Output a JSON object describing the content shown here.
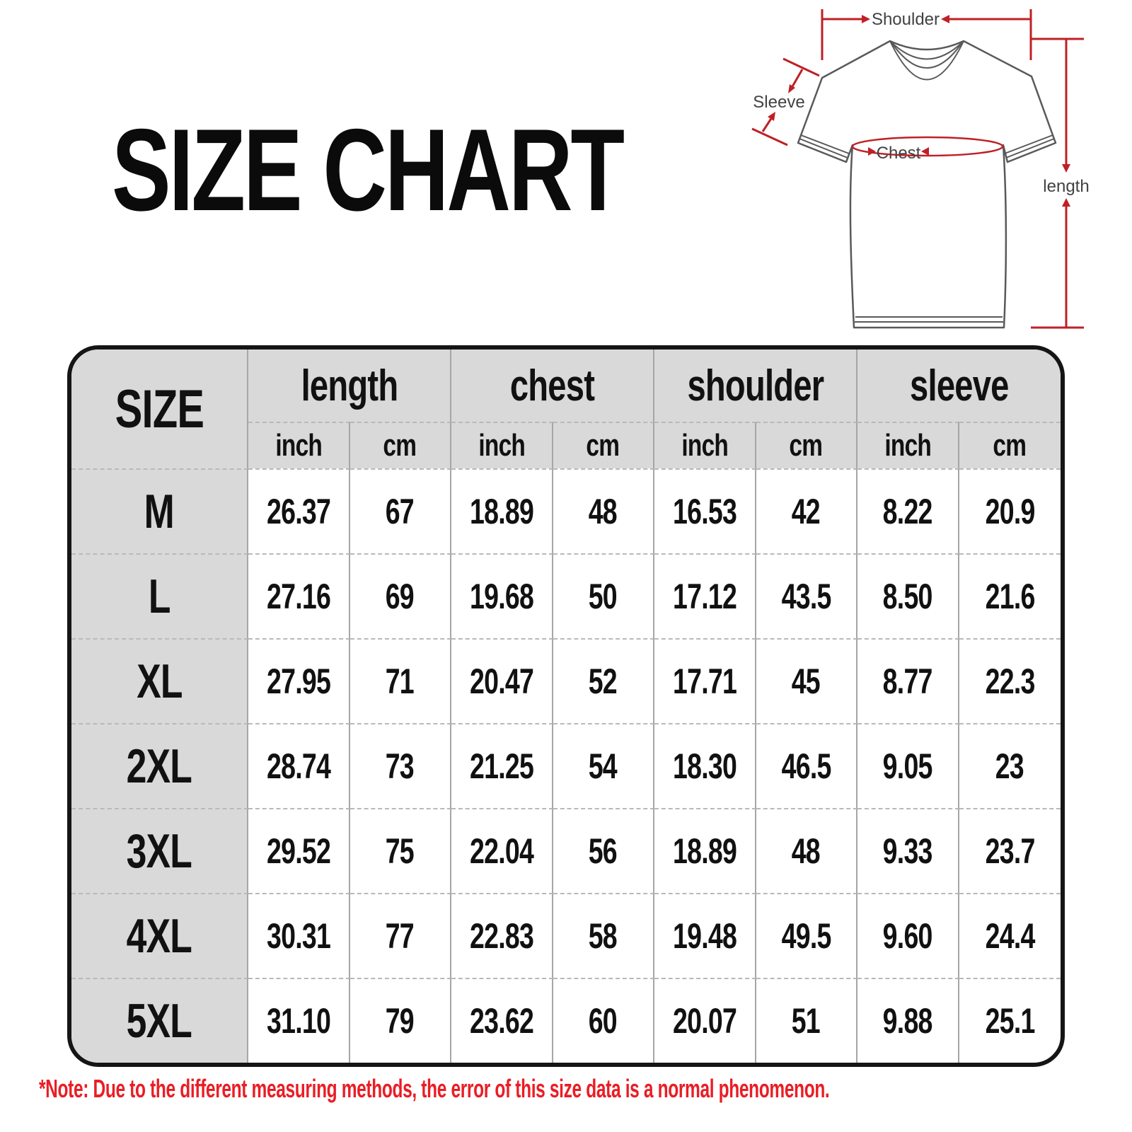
{
  "title": "SIZE CHART",
  "diagram": {
    "shoulder_label": "Shoulder",
    "sleeve_label": "Sleeve",
    "chest_label": "Chest",
    "length_label": "length"
  },
  "table": {
    "size_header": "SIZE",
    "group_headers": [
      "length",
      "chest",
      "shoulder",
      "sleeve"
    ],
    "unit_headers": [
      "inch",
      "cm"
    ],
    "rows": [
      {
        "size": "M",
        "values": [
          "26.37",
          "67",
          "18.89",
          "48",
          "16.53",
          "42",
          "8.22",
          "20.9"
        ]
      },
      {
        "size": "L",
        "values": [
          "27.16",
          "69",
          "19.68",
          "50",
          "17.12",
          "43.5",
          "8.50",
          "21.6"
        ]
      },
      {
        "size": "XL",
        "values": [
          "27.95",
          "71",
          "20.47",
          "52",
          "17.71",
          "45",
          "8.77",
          "22.3"
        ]
      },
      {
        "size": "2XL",
        "values": [
          "28.74",
          "73",
          "21.25",
          "54",
          "18.30",
          "46.5",
          "9.05",
          "23"
        ]
      },
      {
        "size": "3XL",
        "values": [
          "29.52",
          "75",
          "22.04",
          "56",
          "18.89",
          "48",
          "9.33",
          "23.7"
        ]
      },
      {
        "size": "4XL",
        "values": [
          "30.31",
          "77",
          "22.83",
          "58",
          "19.48",
          "49.5",
          "9.60",
          "24.4"
        ]
      },
      {
        "size": "5XL",
        "values": [
          "31.10",
          "79",
          "23.62",
          "60",
          "20.07",
          "51",
          "9.88",
          "25.1"
        ]
      }
    ]
  },
  "note": "*Note: Due to the different measuring methods, the error of this size data is a normal phenomenon.",
  "colors": {
    "header_bg": "#d9d9d9",
    "note_red": "#ea1d25",
    "annotation_red": "#bf2026",
    "shirt_outline": "#58595b"
  },
  "chart_data": {
    "type": "table",
    "title": "SIZE CHART",
    "columns": [
      "SIZE",
      "length inch",
      "length cm",
      "chest inch",
      "chest cm",
      "shoulder inch",
      "shoulder cm",
      "sleeve inch",
      "sleeve cm"
    ],
    "rows": [
      [
        "M",
        "26.37",
        "67",
        "18.89",
        "48",
        "16.53",
        "42",
        "8.22",
        "20.9"
      ],
      [
        "L",
        "27.16",
        "69",
        "19.68",
        "50",
        "17.12",
        "43.5",
        "8.50",
        "21.6"
      ],
      [
        "XL",
        "27.95",
        "71",
        "20.47",
        "52",
        "17.71",
        "45",
        "8.77",
        "22.3"
      ],
      [
        "2XL",
        "28.74",
        "73",
        "21.25",
        "54",
        "18.30",
        "46.5",
        "9.05",
        "23"
      ],
      [
        "3XL",
        "29.52",
        "75",
        "22.04",
        "56",
        "18.89",
        "48",
        "9.33",
        "23.7"
      ],
      [
        "4XL",
        "30.31",
        "77",
        "22.83",
        "58",
        "19.48",
        "49.5",
        "9.60",
        "24.4"
      ],
      [
        "5XL",
        "31.10",
        "79",
        "23.62",
        "60",
        "20.07",
        "51",
        "9.88",
        "25.1"
      ]
    ]
  }
}
